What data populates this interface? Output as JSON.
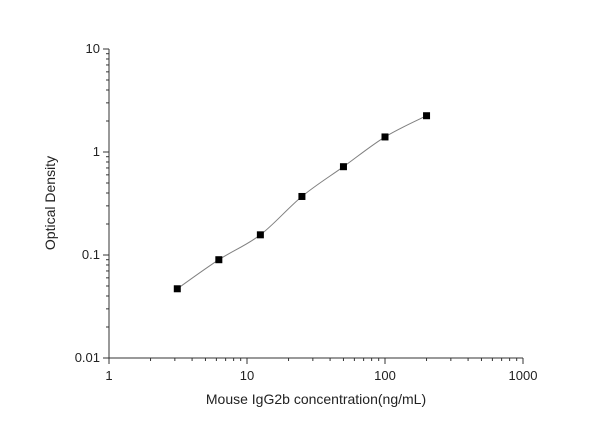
{
  "chart_data": {
    "type": "scatter",
    "title": "",
    "xlabel": "Mouse IgG2b concentration(ng/mL)",
    "ylabel": "Optical Density",
    "xscale": "log",
    "yscale": "log",
    "xlim": [
      1,
      1000
    ],
    "ylim": [
      0.01,
      10
    ],
    "xticks": [
      "1",
      "10",
      "100",
      "1000"
    ],
    "yticks": [
      "0.01",
      "0.1",
      "1",
      "10"
    ],
    "grid": false,
    "fit_curve": true,
    "marker": "square",
    "colors": {
      "marker": "#000000",
      "curve": "#808080",
      "axis": "#333333"
    },
    "series": [
      {
        "x": [
          3.125,
          6.25,
          12.5,
          25,
          50,
          100,
          200
        ],
        "y": [
          0.047,
          0.09,
          0.157,
          0.37,
          0.72,
          1.4,
          2.25
        ]
      }
    ]
  }
}
